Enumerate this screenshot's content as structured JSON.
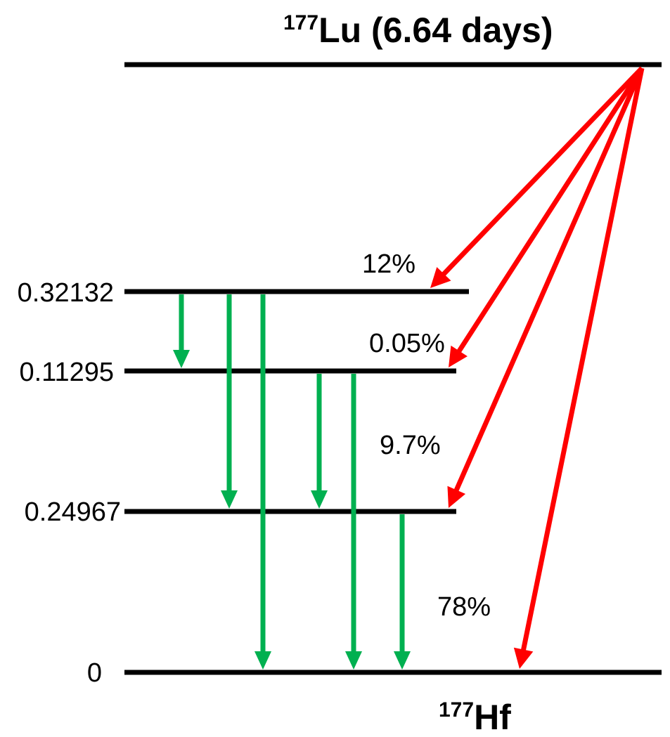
{
  "parent": {
    "mass_number": "177",
    "symbol": "Lu",
    "half_life_text": " (6.64 days)"
  },
  "daughter": {
    "mass_number": "177",
    "symbol": "Hf"
  },
  "levels": [
    {
      "id": "level-1",
      "energy": "0.32132"
    },
    {
      "id": "level-2",
      "energy": "0.11295"
    },
    {
      "id": "level-3",
      "energy": "0.24967"
    },
    {
      "id": "level-ground",
      "energy": "0"
    }
  ],
  "beta_branches": [
    {
      "to": "level-1",
      "percent": "12%"
    },
    {
      "to": "level-2",
      "percent": "0.05%"
    },
    {
      "to": "level-3",
      "percent": "9.7%"
    },
    {
      "to": "level-ground",
      "percent": "78%"
    }
  ],
  "gamma_transitions": [
    {
      "from": "level-1",
      "to": "level-2"
    },
    {
      "from": "level-1",
      "to": "level-3"
    },
    {
      "from": "level-1",
      "to": "level-ground"
    },
    {
      "from": "level-2",
      "to": "level-3"
    },
    {
      "from": "level-2",
      "to": "level-ground"
    },
    {
      "from": "level-3",
      "to": "level-ground"
    }
  ],
  "colors": {
    "level_line": "#000000",
    "beta_arrow": "#ff0000",
    "gamma_arrow": "#00b050"
  }
}
